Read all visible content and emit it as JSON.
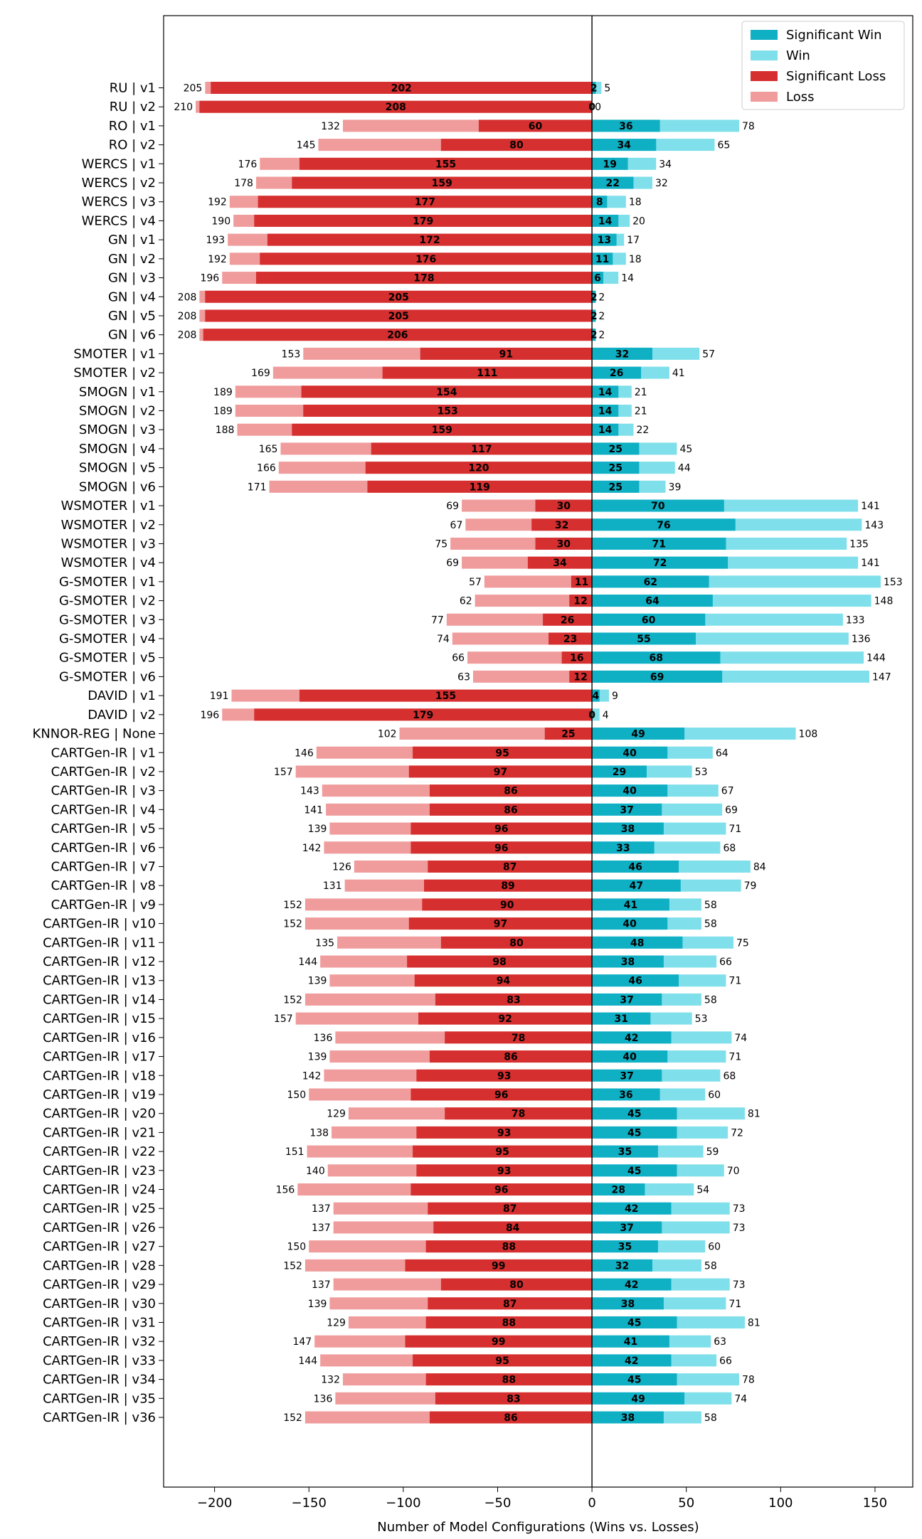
{
  "chart_data": {
    "type": "bar",
    "orientation": "horizontal-diverging",
    "xlabel": "Number of Model Configurations (Wins vs. Losses)",
    "xlim": [
      -227,
      170
    ],
    "xticks": [
      -200,
      -150,
      -100,
      -50,
      0,
      50,
      100,
      150
    ],
    "xtick_labels": [
      "−200",
      "−150",
      "−100",
      "−50",
      "0",
      "50",
      "100",
      "150"
    ],
    "legend_position": "top-right",
    "legend": [
      {
        "name": "Significant Win",
        "color": "#0fafc4"
      },
      {
        "name": "Win",
        "color": "#7fdfea"
      },
      {
        "name": "Significant Loss",
        "color": "#d62f2f"
      },
      {
        "name": "Loss",
        "color": "#f09c9c"
      }
    ],
    "categories": [
      "RU | v1",
      "RU | v2",
      "RO | v1",
      "RO | v2",
      "WERCS | v1",
      "WERCS | v2",
      "WERCS | v3",
      "WERCS | v4",
      "GN | v1",
      "GN | v2",
      "GN | v3",
      "GN | v4",
      "GN | v5",
      "GN | v6",
      "SMOTER | v1",
      "SMOTER | v2",
      "SMOGN | v1",
      "SMOGN | v2",
      "SMOGN | v3",
      "SMOGN | v4",
      "SMOGN | v5",
      "SMOGN | v6",
      "WSMOTER | v1",
      "WSMOTER | v2",
      "WSMOTER | v3",
      "WSMOTER | v4",
      "G-SMOTER | v1",
      "G-SMOTER | v2",
      "G-SMOTER | v3",
      "G-SMOTER | v4",
      "G-SMOTER | v5",
      "G-SMOTER | v6",
      "DAVID | v1",
      "DAVID | v2",
      "KNNOR-REG | None",
      "CARTGen-IR | v1",
      "CARTGen-IR | v2",
      "CARTGen-IR | v3",
      "CARTGen-IR | v4",
      "CARTGen-IR | v5",
      "CARTGen-IR | v6",
      "CARTGen-IR | v7",
      "CARTGen-IR | v8",
      "CARTGen-IR | v9",
      "CARTGen-IR | v10",
      "CARTGen-IR | v11",
      "CARTGen-IR | v12",
      "CARTGen-IR | v13",
      "CARTGen-IR | v14",
      "CARTGen-IR | v15",
      "CARTGen-IR | v16",
      "CARTGen-IR | v17",
      "CARTGen-IR | v18",
      "CARTGen-IR | v19",
      "CARTGen-IR | v20",
      "CARTGen-IR | v21",
      "CARTGen-IR | v22",
      "CARTGen-IR | v23",
      "CARTGen-IR | v24",
      "CARTGen-IR | v25",
      "CARTGen-IR | v26",
      "CARTGen-IR | v27",
      "CARTGen-IR | v28",
      "CARTGen-IR | v29",
      "CARTGen-IR | v30",
      "CARTGen-IR | v31",
      "CARTGen-IR | v32",
      "CARTGen-IR | v33",
      "CARTGen-IR | v34",
      "CARTGen-IR | v35",
      "CARTGen-IR | v36"
    ],
    "series": [
      {
        "name": "Significant Win",
        "values": [
          2,
          0,
          36,
          34,
          19,
          22,
          8,
          14,
          13,
          11,
          6,
          2,
          2,
          2,
          32,
          26,
          14,
          14,
          14,
          25,
          25,
          25,
          70,
          76,
          71,
          72,
          62,
          64,
          60,
          55,
          68,
          69,
          4,
          0,
          49,
          40,
          29,
          40,
          37,
          38,
          33,
          46,
          47,
          41,
          40,
          48,
          38,
          46,
          37,
          31,
          42,
          40,
          37,
          36,
          45,
          45,
          35,
          45,
          28,
          42,
          37,
          35,
          32,
          42,
          38,
          45,
          41,
          42,
          45,
          49,
          38
        ]
      },
      {
        "name": "Win",
        "values": [
          5,
          0,
          78,
          65,
          34,
          32,
          18,
          20,
          17,
          18,
          14,
          2,
          2,
          2,
          57,
          41,
          21,
          21,
          22,
          45,
          44,
          39,
          141,
          143,
          135,
          141,
          153,
          148,
          133,
          136,
          144,
          147,
          9,
          4,
          108,
          64,
          53,
          67,
          69,
          71,
          68,
          84,
          79,
          58,
          58,
          75,
          66,
          71,
          58,
          53,
          74,
          71,
          68,
          60,
          81,
          72,
          59,
          70,
          54,
          73,
          73,
          60,
          58,
          73,
          71,
          81,
          63,
          66,
          78,
          74,
          58
        ]
      },
      {
        "name": "Significant Loss",
        "values": [
          202,
          208,
          60,
          80,
          155,
          159,
          177,
          179,
          172,
          176,
          178,
          205,
          205,
          206,
          91,
          111,
          154,
          153,
          159,
          117,
          120,
          119,
          30,
          32,
          30,
          34,
          11,
          12,
          26,
          23,
          16,
          12,
          155,
          179,
          25,
          95,
          97,
          86,
          86,
          96,
          96,
          87,
          89,
          90,
          97,
          80,
          98,
          94,
          83,
          92,
          78,
          86,
          93,
          96,
          78,
          93,
          95,
          93,
          96,
          87,
          84,
          88,
          99,
          80,
          87,
          88,
          99,
          95,
          88,
          83,
          86
        ]
      },
      {
        "name": "Loss",
        "values": [
          205,
          210,
          132,
          145,
          176,
          178,
          192,
          190,
          193,
          192,
          196,
          208,
          208,
          208,
          153,
          169,
          189,
          189,
          188,
          165,
          166,
          171,
          69,
          67,
          75,
          69,
          57,
          62,
          77,
          74,
          66,
          63,
          191,
          196,
          102,
          146,
          157,
          143,
          141,
          139,
          142,
          126,
          131,
          152,
          152,
          135,
          144,
          139,
          152,
          157,
          136,
          139,
          142,
          150,
          129,
          138,
          151,
          140,
          156,
          137,
          137,
          150,
          152,
          137,
          139,
          129,
          147,
          144,
          132,
          136,
          152
        ]
      }
    ]
  }
}
